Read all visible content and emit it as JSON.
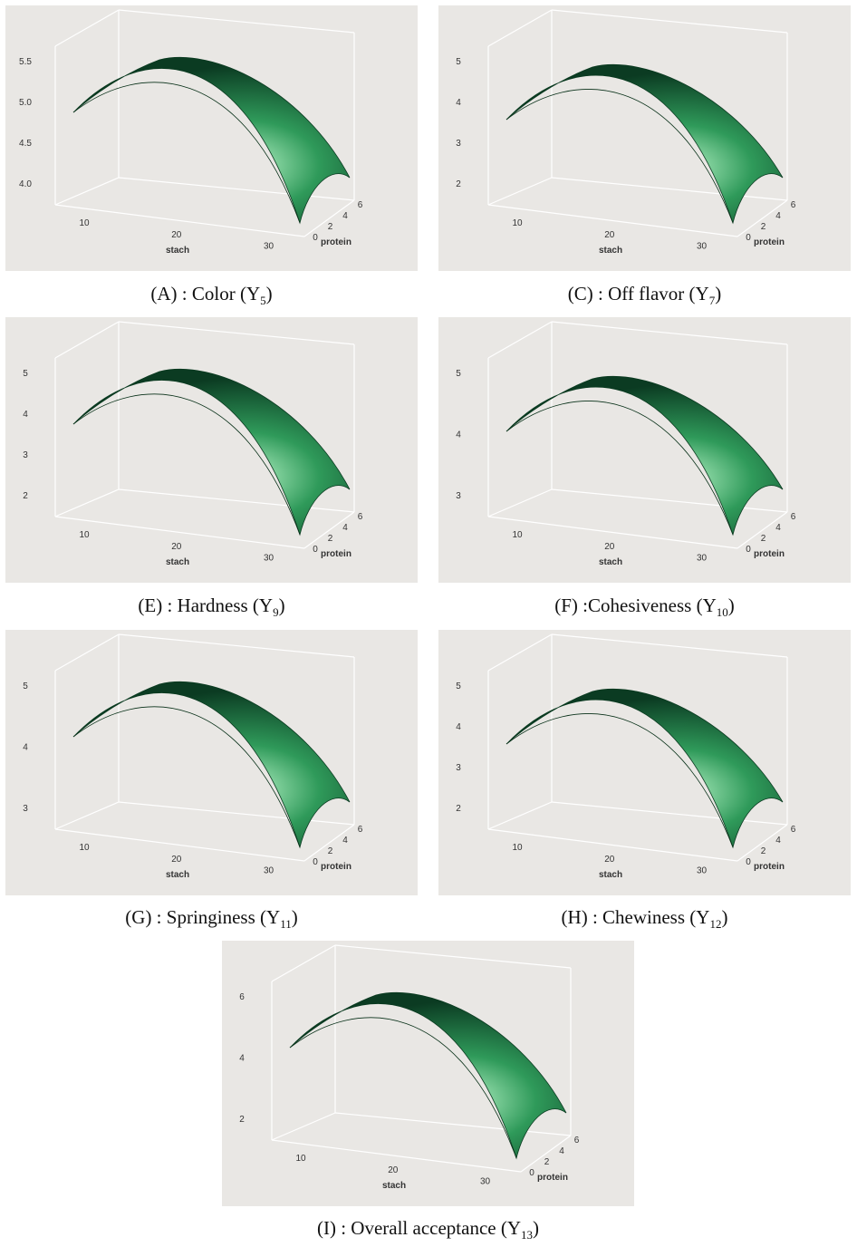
{
  "panels": [
    {
      "caption": {
        "text": "(A) : Color (Y",
        "sub": "5",
        "close": ")"
      },
      "zticks": [
        "5.5",
        "5.0",
        "4.5",
        "4.0"
      ],
      "xticks": [
        "10",
        "20",
        "30"
      ],
      "yticks": [
        "0",
        "2",
        "4",
        "6"
      ],
      "xlabel": "stach",
      "ylabel": "protein"
    },
    {
      "caption": {
        "text": "(C) : Off flavor (Y",
        "sub": "7",
        "close": ")"
      },
      "zticks": [
        "5",
        "4",
        "3",
        "2"
      ],
      "xticks": [
        "10",
        "20",
        "30"
      ],
      "yticks": [
        "0",
        "2",
        "4",
        "6"
      ],
      "xlabel": "stach",
      "ylabel": "protein"
    },
    {
      "caption": {
        "text": "(E) : Hardness (Y",
        "sub": "9",
        "close": ")"
      },
      "zticks": [
        "5",
        "4",
        "3",
        "2"
      ],
      "xticks": [
        "10",
        "20",
        "30"
      ],
      "yticks": [
        "0",
        "2",
        "4",
        "6"
      ],
      "xlabel": "stach",
      "ylabel": "protein"
    },
    {
      "caption": {
        "text": "(F) :Cohesiveness (Y",
        "sub": "10",
        "close": ")"
      },
      "zticks": [
        "5",
        "4",
        "3"
      ],
      "xticks": [
        "10",
        "20",
        "30"
      ],
      "yticks": [
        "0",
        "2",
        "4",
        "6"
      ],
      "xlabel": "stach",
      "ylabel": "protein"
    },
    {
      "caption": {
        "text": "(G) : Springiness (Y",
        "sub": "11",
        "close": ")"
      },
      "zticks": [
        "5",
        "4",
        "3"
      ],
      "xticks": [
        "10",
        "20",
        "30"
      ],
      "yticks": [
        "0",
        "2",
        "4",
        "6"
      ],
      "xlabel": "stach",
      "ylabel": "protein"
    },
    {
      "caption": {
        "text": "(H) : Chewiness (Y",
        "sub": "12",
        "close": ")"
      },
      "zticks": [
        "5",
        "4",
        "3",
        "2"
      ],
      "xticks": [
        "10",
        "20",
        "30"
      ],
      "yticks": [
        "0",
        "2",
        "4",
        "6"
      ],
      "xlabel": "stach",
      "ylabel": "protein"
    },
    {
      "caption": {
        "text": "(I) : Overall acceptance (Y",
        "sub": "13",
        "close": ")"
      },
      "zticks": [
        "6",
        "4",
        "2"
      ],
      "xticks": [
        "10",
        "20",
        "30"
      ],
      "yticks": [
        "0",
        "2",
        "4",
        "6"
      ],
      "xlabel": "stach",
      "ylabel": "protein"
    }
  ]
}
